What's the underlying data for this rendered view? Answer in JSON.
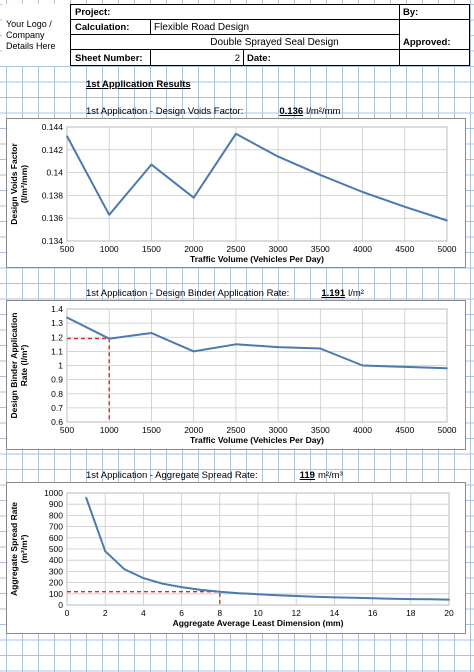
{
  "header": {
    "logo_text": [
      "Your Logo /",
      "Company",
      "Details Here"
    ],
    "project_label": "Project:",
    "calculation_label": "Calculation:",
    "calculation_value": "Flexible Road Design",
    "subtitle_value": "Double Sprayed Seal Design",
    "sheet_number_label": "Sheet Number:",
    "sheet_number_value": "2",
    "date_label": "Date:",
    "by_label": "By:",
    "approved_label": "Approved:"
  },
  "results": {
    "section_title": "1st Application Results",
    "voids_label": "1st Application - Design Voids Factor:",
    "voids_value": "0.136",
    "voids_unit": "l/m²/mm",
    "binder_label": "1st Application - Design Binder Application Rate:",
    "binder_value": "1.191",
    "binder_unit": "l/m²",
    "spread_label": "1st Application - Aggregate Spread Rate:",
    "spread_value": "119",
    "spread_unit": "m²/m³"
  },
  "colors": {
    "line": "#4a7ab0",
    "marker": "#d62a2a",
    "grid": "#a9c3e0"
  },
  "chart_data": [
    {
      "type": "line",
      "xlabel": "Traffic Volume (Vehicles Per Day)",
      "ylabel": "Design Voids Factor",
      "ylabel_unit": "(l/m²/mm)",
      "x": [
        500,
        1000,
        1500,
        2000,
        2500,
        3000,
        3500,
        4000,
        4500,
        5000
      ],
      "values": [
        0.1432,
        0.1363,
        0.1407,
        0.1378,
        0.1434,
        0.1414,
        0.1398,
        0.1383,
        0.137,
        0.1358
      ],
      "xlim": [
        500,
        5000
      ],
      "ylim": [
        0.134,
        0.144
      ],
      "xticks": [
        "500",
        "1000",
        "1500",
        "2000",
        "2500",
        "3000",
        "3500",
        "4000",
        "4500",
        "5000"
      ],
      "yticks": [
        "0.134",
        "0.136",
        "0.138",
        "0.14",
        "0.142",
        "0.144"
      ],
      "grid": true
    },
    {
      "type": "line",
      "xlabel": "Traffic Volume (Vehicles Per Day)",
      "ylabel": "Design Binder Application",
      "ylabel_unit": "Rate (l/m²)",
      "x": [
        500,
        1000,
        1500,
        2000,
        2500,
        3000,
        3500,
        4000,
        4500,
        5000
      ],
      "values": [
        1.34,
        1.19,
        1.23,
        1.1,
        1.15,
        1.13,
        1.12,
        1.0,
        0.99,
        0.98
      ],
      "xlim": [
        500,
        5000
      ],
      "ylim": [
        0.6,
        1.4
      ],
      "xticks": [
        "500",
        "1000",
        "1500",
        "2000",
        "2500",
        "3000",
        "3500",
        "4000",
        "4500",
        "5000"
      ],
      "yticks": [
        "0.6",
        "0.7",
        "0.8",
        "0.9",
        "1",
        "1.1",
        "1.2",
        "1.3",
        "1.4"
      ],
      "marker": {
        "x": 1000,
        "y": 1.191
      },
      "grid": true
    },
    {
      "type": "line",
      "xlabel": "Aggregate Average Least Dimension (mm)",
      "ylabel": "Aggregate Spread Rate",
      "ylabel_unit": "(m²/m³)",
      "x": [
        1,
        2,
        3,
        4,
        5,
        6,
        7,
        8,
        9,
        10,
        11,
        12,
        13,
        14,
        15,
        16,
        17,
        18,
        19,
        20
      ],
      "values": [
        960,
        480,
        320,
        240,
        190,
        160,
        135,
        119,
        105,
        96,
        87,
        80,
        74,
        68,
        64,
        60,
        56,
        53,
        51,
        48
      ],
      "xlim": [
        0,
        20
      ],
      "ylim": [
        0,
        1000
      ],
      "xticks": [
        "0",
        "2",
        "4",
        "6",
        "8",
        "10",
        "12",
        "14",
        "16",
        "18",
        "20"
      ],
      "yticks": [
        "0",
        "100",
        "200",
        "300",
        "400",
        "500",
        "600",
        "700",
        "800",
        "900",
        "1000"
      ],
      "marker": {
        "x": 8,
        "y": 119
      },
      "grid": true
    }
  ]
}
